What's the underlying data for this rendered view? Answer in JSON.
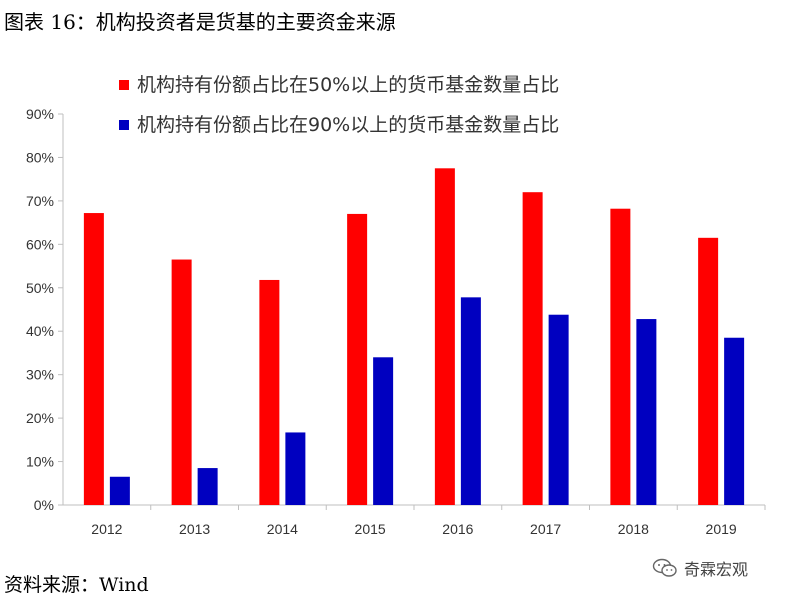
{
  "title": "图表 16：机构投资者是货基的主要资金来源",
  "source": "资料来源：Wind",
  "watermark": "奇霖宏观",
  "watermark_icon": "wechat-icon",
  "colors": {
    "series1": "#ff0000",
    "series2": "#0000c0",
    "axis": "#bfbfbf"
  },
  "chart_data": {
    "type": "bar",
    "categories": [
      "2012",
      "2013",
      "2014",
      "2015",
      "2016",
      "2017",
      "2018",
      "2019"
    ],
    "series": [
      {
        "name": "机构持有份额占比在50%以上的货币基金数量占比",
        "values": [
          67.2,
          56.5,
          51.8,
          67.0,
          77.5,
          72.0,
          68.2,
          61.5
        ]
      },
      {
        "name": "机构持有份额占比在90%以上的货币基金数量占比",
        "values": [
          6.5,
          8.5,
          16.7,
          34.0,
          47.8,
          43.8,
          42.8,
          38.5
        ]
      }
    ],
    "yticks": [
      "0%",
      "10%",
      "20%",
      "30%",
      "40%",
      "50%",
      "60%",
      "70%",
      "80%",
      "90%"
    ],
    "ylim": [
      0,
      90
    ],
    "legend": "top",
    "grid": false
  }
}
